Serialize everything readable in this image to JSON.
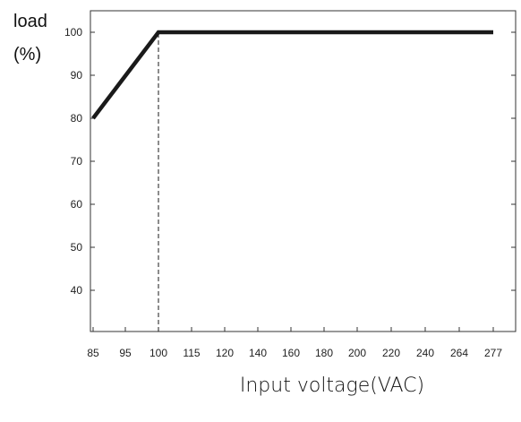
{
  "chart_data": {
    "type": "line",
    "ylabel_lines": [
      "load",
      "(%)"
    ],
    "xlabel": "Input voltage(VAC)",
    "x_ticks": [
      "85",
      "95",
      "100",
      "115",
      "120",
      "140",
      "160",
      "180",
      "200",
      "220",
      "240",
      "264",
      "277"
    ],
    "y_ticks": [
      40,
      50,
      60,
      70,
      80,
      90,
      100
    ],
    "ylim": [
      30,
      105
    ],
    "grid": false,
    "series": [
      {
        "points": [
          {
            "x": "85",
            "y": 80
          },
          {
            "x": "100",
            "y": 100
          },
          {
            "x": "277",
            "y": 100
          }
        ]
      }
    ],
    "reference_lines": [
      {
        "x": "100",
        "y_from": 30,
        "y_to": 100,
        "style": "dashed"
      }
    ],
    "colors": {
      "line": "#1a1a1a",
      "axis": "#333333"
    }
  }
}
